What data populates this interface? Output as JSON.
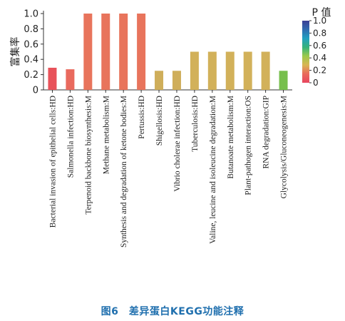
{
  "chart_data": {
    "type": "bar",
    "ylabel": "富集率",
    "ylim": [
      0,
      1.0
    ],
    "yticks": [
      "0",
      "0.2",
      "0.4",
      "0.6",
      "0.8",
      "1.0"
    ],
    "categories": [
      "Bacterial invasion of epithelial cells:HD",
      "Salmonella infection:HD",
      "Terpenoid backbone biosynthesis:M",
      "Methane metabolism:M",
      "Synthesis and degradation of ketone bodies:M",
      "Pertussis:HD",
      "Shigellosis:HD",
      "Vibrio cholerae infection:HD",
      "Tuberculosis:HD",
      "Valine, leucine and isoleucine degradation:M",
      "Butanoate metabolism:M",
      "Plant-pathogen interaction:OS",
      "RNA degradation:GIP",
      "Glycolysis/Gluconeogenesis:M"
    ],
    "values": [
      0.29,
      0.27,
      1.0,
      1.0,
      1.0,
      1.0,
      0.25,
      0.25,
      0.5,
      0.5,
      0.5,
      0.5,
      0.5,
      0.25
    ],
    "colors": [
      "#e8525a",
      "#e96a5e",
      "#e8745c",
      "#e8745c",
      "#e8745c",
      "#e8745c",
      "#cfae5a",
      "#cfae5a",
      "#d2b15a",
      "#d2b15a",
      "#d2b15a",
      "#d2b15a",
      "#d2b15a",
      "#77bf4d"
    ],
    "legend": {
      "title": "P 值",
      "ticks": [
        "1.0",
        "0.8",
        "0.6",
        "0.4",
        "0.2",
        "0"
      ],
      "gradient": [
        "#3b3f95",
        "#2f6bb0",
        "#22a0c0",
        "#35b27a",
        "#9cc94a",
        "#d9b552",
        "#e96a5c",
        "#e8455e"
      ]
    }
  },
  "caption": "图6　差异蛋白KEGG功能注释"
}
